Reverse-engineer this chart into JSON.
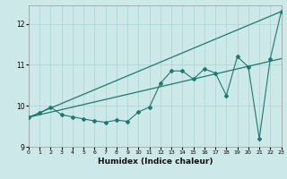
{
  "xlabel": "Humidex (Indice chaleur)",
  "bg_color": "#cde8e8",
  "grid_color": "#a8d4d4",
  "line_color": "#1a7a70",
  "x_data": [
    0,
    1,
    2,
    3,
    4,
    5,
    6,
    7,
    8,
    9,
    10,
    11,
    12,
    13,
    14,
    15,
    16,
    17,
    18,
    19,
    20,
    21,
    22,
    23
  ],
  "y_marker": [
    9.72,
    9.82,
    9.97,
    9.78,
    9.73,
    9.68,
    9.63,
    9.6,
    9.65,
    9.62,
    9.85,
    9.97,
    10.55,
    10.85,
    10.85,
    10.65,
    10.9,
    10.8,
    10.25,
    11.2,
    10.95,
    9.2,
    11.15,
    12.3
  ],
  "y_line1_start": 9.72,
  "y_line1_end": 12.3,
  "y_line2_start": 9.72,
  "y_line2_end": 11.15,
  "ylim": [
    9.0,
    12.45
  ],
  "xlim": [
    0,
    23
  ],
  "yticks": [
    9,
    10,
    11,
    12
  ],
  "xticks": [
    0,
    1,
    2,
    3,
    4,
    5,
    6,
    7,
    8,
    9,
    10,
    11,
    12,
    13,
    14,
    15,
    16,
    17,
    18,
    19,
    20,
    21,
    22,
    23
  ]
}
